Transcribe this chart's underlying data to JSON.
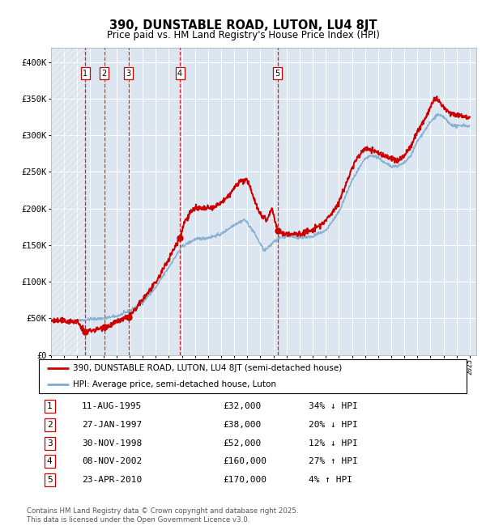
{
  "title": "390, DUNSTABLE ROAD, LUTON, LU4 8JT",
  "subtitle": "Price paid vs. HM Land Registry's House Price Index (HPI)",
  "legend_line1": "390, DUNSTABLE ROAD, LUTON, LU4 8JT (semi-detached house)",
  "legend_line2": "HPI: Average price, semi-detached house, Luton",
  "footer": "Contains HM Land Registry data © Crown copyright and database right 2025.\nThis data is licensed under the Open Government Licence v3.0.",
  "hpi_color": "#7faacc",
  "price_color": "#cc0000",
  "vline_color": "#cc0000",
  "bg_color": "#dce6f0",
  "hatched_area_end_year": 1995.61,
  "sales": [
    {
      "num": 1,
      "year": 1995.61,
      "price": 32000
    },
    {
      "num": 2,
      "year": 1997.07,
      "price": 38000
    },
    {
      "num": 3,
      "year": 1998.92,
      "price": 52000
    },
    {
      "num": 4,
      "year": 2002.85,
      "price": 160000
    },
    {
      "num": 5,
      "year": 2010.31,
      "price": 170000
    }
  ],
  "table_rows": [
    [
      "1",
      "11-AUG-1995",
      "£32,000",
      "34% ↓ HPI"
    ],
    [
      "2",
      "27-JAN-1997",
      "£38,000",
      "20% ↓ HPI"
    ],
    [
      "3",
      "30-NOV-1998",
      "£52,000",
      "12% ↓ HPI"
    ],
    [
      "4",
      "08-NOV-2002",
      "£160,000",
      "27% ↑ HPI"
    ],
    [
      "5",
      "23-APR-2010",
      "£170,000",
      "4% ↑ HPI"
    ]
  ],
  "ylim": [
    0,
    420000
  ],
  "xlim": [
    1993.0,
    2025.5
  ],
  "yticks": [
    0,
    50000,
    100000,
    150000,
    200000,
    250000,
    300000,
    350000,
    400000
  ],
  "ytick_labels": [
    "£0",
    "£50K",
    "£100K",
    "£150K",
    "£200K",
    "£250K",
    "£300K",
    "£350K",
    "£400K"
  ],
  "hpi_anchors": [
    [
      1993.0,
      47000
    ],
    [
      1994.0,
      47500
    ],
    [
      1995.0,
      47000
    ],
    [
      1996.0,
      49000
    ],
    [
      1997.0,
      50000
    ],
    [
      1998.0,
      53000
    ],
    [
      1999.0,
      60000
    ],
    [
      2000.0,
      72000
    ],
    [
      2001.0,
      92000
    ],
    [
      2002.0,
      120000
    ],
    [
      2003.0,
      148000
    ],
    [
      2004.0,
      158000
    ],
    [
      2005.0,
      160000
    ],
    [
      2006.0,
      165000
    ],
    [
      2007.0,
      178000
    ],
    [
      2007.8,
      185000
    ],
    [
      2008.5,
      168000
    ],
    [
      2009.3,
      142000
    ],
    [
      2009.8,
      150000
    ],
    [
      2010.0,
      155000
    ],
    [
      2010.5,
      160000
    ],
    [
      2011.0,
      163000
    ],
    [
      2012.0,
      160000
    ],
    [
      2013.0,
      162000
    ],
    [
      2014.0,
      170000
    ],
    [
      2015.0,
      195000
    ],
    [
      2016.0,
      238000
    ],
    [
      2017.0,
      268000
    ],
    [
      2017.5,
      272000
    ],
    [
      2018.0,
      270000
    ],
    [
      2018.5,
      262000
    ],
    [
      2019.0,
      258000
    ],
    [
      2019.5,
      258000
    ],
    [
      2020.0,
      262000
    ],
    [
      2020.5,
      272000
    ],
    [
      2021.0,
      292000
    ],
    [
      2022.0,
      318000
    ],
    [
      2022.5,
      328000
    ],
    [
      2023.0,
      325000
    ],
    [
      2023.5,
      315000
    ],
    [
      2024.0,
      312000
    ],
    [
      2024.5,
      314000
    ],
    [
      2025.0,
      312000
    ]
  ],
  "price_anchors": [
    [
      1993.0,
      47000
    ],
    [
      1994.5,
      46000
    ],
    [
      1995.0,
      45000
    ],
    [
      1995.61,
      32000
    ],
    [
      1996.0,
      33500
    ],
    [
      1996.5,
      35000
    ],
    [
      1997.07,
      38000
    ],
    [
      1997.5,
      40000
    ],
    [
      1998.0,
      45000
    ],
    [
      1998.92,
      52000
    ],
    [
      1999.5,
      63000
    ],
    [
      2000.0,
      76000
    ],
    [
      2001.0,
      98000
    ],
    [
      2001.8,
      125000
    ],
    [
      2002.85,
      160000
    ],
    [
      2003.2,
      182000
    ],
    [
      2003.7,
      196000
    ],
    [
      2004.0,
      200000
    ],
    [
      2004.5,
      200000
    ],
    [
      2005.0,
      200000
    ],
    [
      2005.5,
      202000
    ],
    [
      2006.0,
      208000
    ],
    [
      2006.5,
      215000
    ],
    [
      2007.0,
      228000
    ],
    [
      2007.5,
      238000
    ],
    [
      2008.0,
      238000
    ],
    [
      2008.3,
      225000
    ],
    [
      2008.8,
      200000
    ],
    [
      2009.0,
      192000
    ],
    [
      2009.5,
      185000
    ],
    [
      2009.9,
      200000
    ],
    [
      2010.31,
      170000
    ],
    [
      2010.5,
      167000
    ],
    [
      2011.0,
      165000
    ],
    [
      2011.5,
      165000
    ],
    [
      2012.0,
      165000
    ],
    [
      2012.5,
      168000
    ],
    [
      2013.0,
      170000
    ],
    [
      2014.0,
      183000
    ],
    [
      2015.0,
      208000
    ],
    [
      2016.0,
      255000
    ],
    [
      2016.5,
      272000
    ],
    [
      2017.0,
      282000
    ],
    [
      2017.5,
      280000
    ],
    [
      2018.0,
      276000
    ],
    [
      2018.5,
      272000
    ],
    [
      2019.0,
      268000
    ],
    [
      2019.5,
      265000
    ],
    [
      2020.0,
      272000
    ],
    [
      2020.5,
      285000
    ],
    [
      2021.0,
      305000
    ],
    [
      2021.5,
      320000
    ],
    [
      2022.0,
      338000
    ],
    [
      2022.3,
      350000
    ],
    [
      2022.7,
      345000
    ],
    [
      2023.0,
      338000
    ],
    [
      2023.5,
      330000
    ],
    [
      2024.0,
      328000
    ],
    [
      2024.5,
      326000
    ],
    [
      2025.0,
      325000
    ]
  ]
}
